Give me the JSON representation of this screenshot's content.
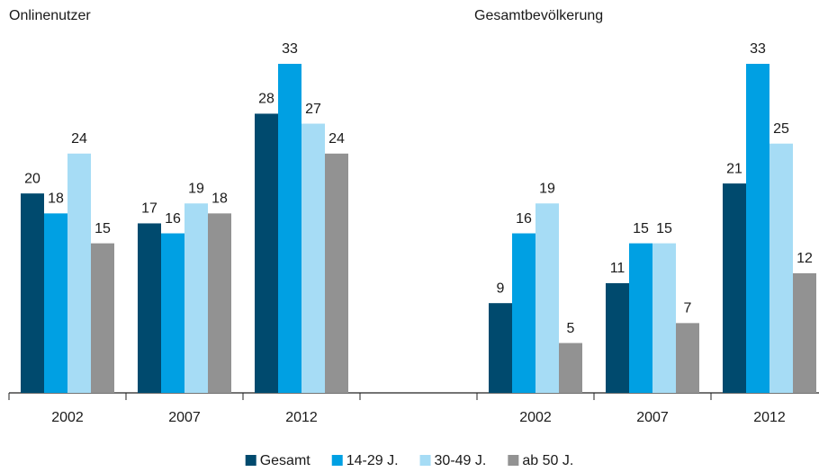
{
  "chart_data": {
    "type": "bar",
    "annotations": [
      "Onlinenutzer",
      "Gesamtbevölkerung"
    ],
    "categories": [
      "2002",
      "2007",
      "2012",
      null,
      "2002",
      "2007",
      "2012"
    ],
    "series": [
      {
        "name": "Gesamt",
        "color": "#004a6e",
        "values": [
          20,
          17,
          28,
          null,
          9,
          11,
          21
        ]
      },
      {
        "name": "14-29 J.",
        "color": "#00a0e3",
        "values": [
          18,
          16,
          33,
          null,
          16,
          15,
          33
        ]
      },
      {
        "name": "30-49 J.",
        "color": "#a6dcf5",
        "values": [
          24,
          19,
          27,
          null,
          19,
          15,
          25
        ]
      },
      {
        "name": "ab 50 J.",
        "color": "#929292",
        "values": [
          15,
          18,
          24,
          null,
          5,
          7,
          12
        ]
      }
    ],
    "legend": "bottom"
  }
}
